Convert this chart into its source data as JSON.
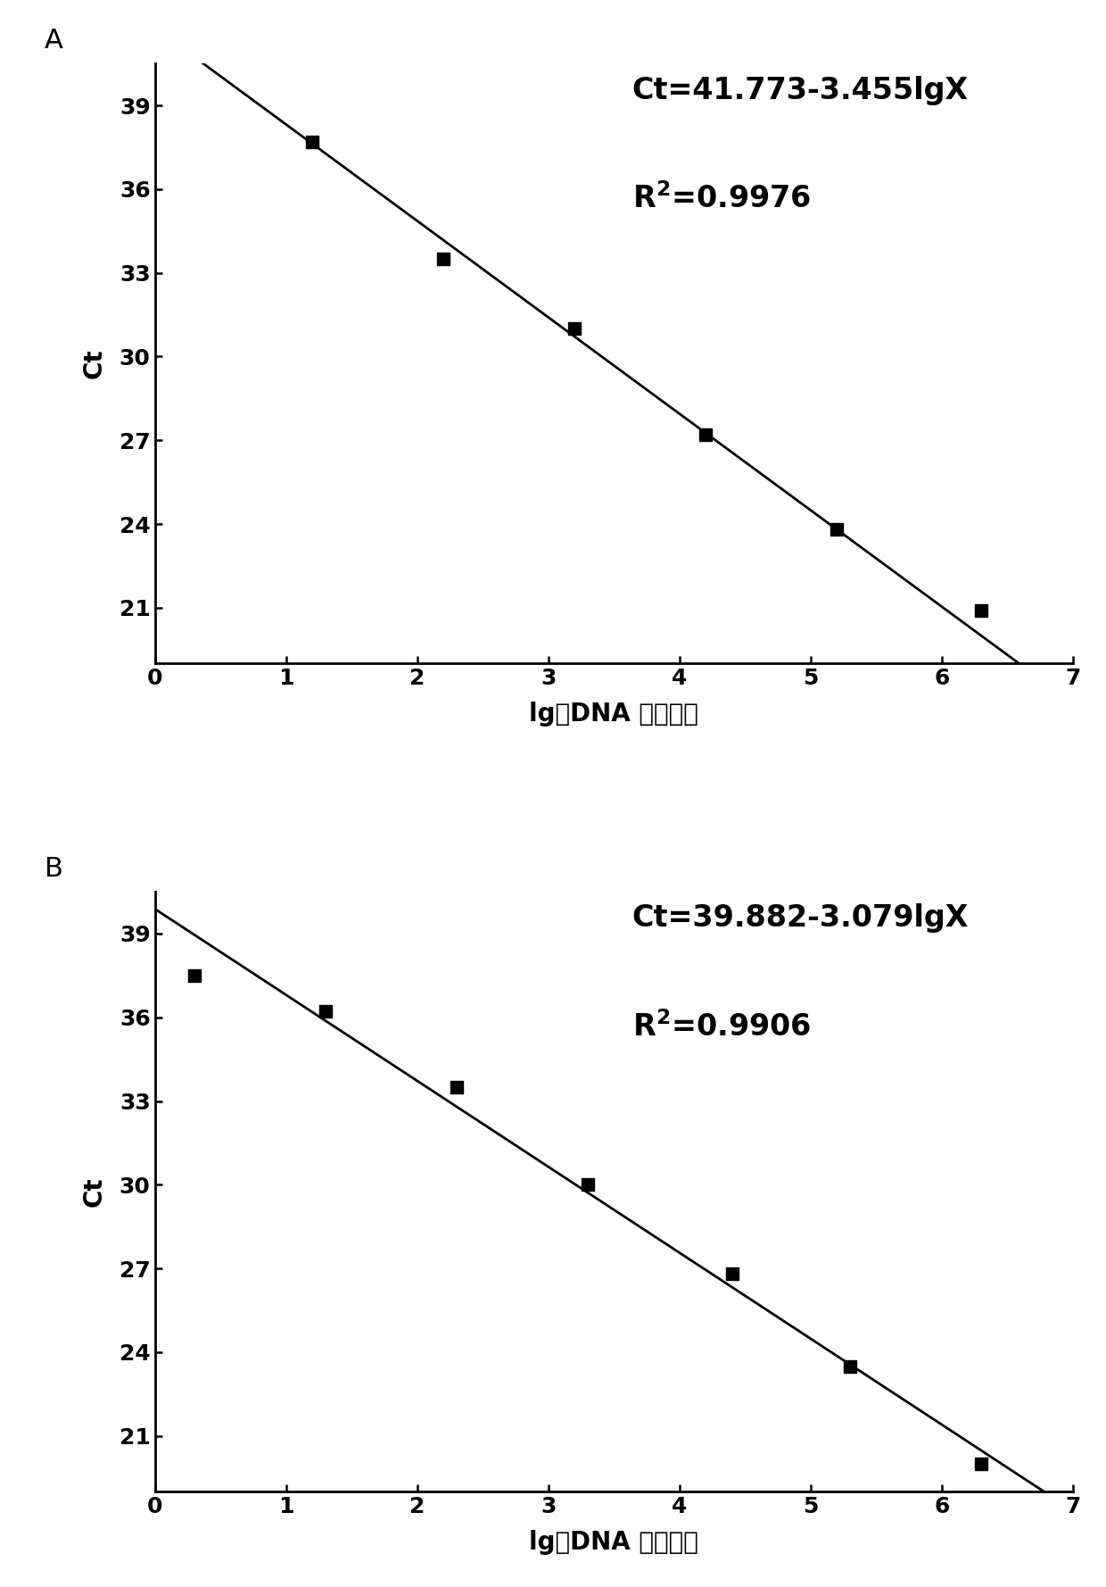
{
  "panel_A": {
    "label": "A",
    "x_data": [
      1.2,
      2.2,
      3.2,
      4.2,
      5.2,
      6.3
    ],
    "y_data": [
      37.7,
      33.5,
      31.0,
      27.2,
      23.8,
      20.9
    ],
    "equation": "Ct=41.773-3.455lgX",
    "r2_eq": "=0.9976",
    "intercept": 41.773,
    "slope": -3.455,
    "xlim": [
      0,
      7
    ],
    "ylim": [
      19,
      40.5
    ],
    "xticks": [
      0,
      1,
      2,
      3,
      4,
      5,
      6,
      7
    ],
    "yticks": [
      21,
      24,
      27,
      30,
      33,
      36,
      39
    ],
    "xlabel": "lg［DNA 拷贝数］",
    "ylabel": "Ct"
  },
  "panel_B": {
    "label": "B",
    "x_data": [
      0.3,
      1.3,
      2.3,
      3.3,
      4.4,
      5.3,
      6.3
    ],
    "y_data": [
      37.5,
      36.2,
      33.5,
      30.0,
      26.8,
      23.5,
      20.0
    ],
    "equation": "Ct=39.882-3.079lgX",
    "r2_eq": "=0.9906",
    "intercept": 39.882,
    "slope": -3.079,
    "xlim": [
      0,
      7
    ],
    "ylim": [
      19,
      40.5
    ],
    "xticks": [
      0,
      1,
      2,
      3,
      4,
      5,
      6,
      7
    ],
    "yticks": [
      21,
      24,
      27,
      30,
      33,
      36,
      39
    ],
    "xlabel": "lg［DNA 拷贝数］",
    "ylabel": "Ct"
  },
  "marker_size": 90,
  "marker_color": "#000000",
  "line_color": "#000000",
  "line_width": 2.0,
  "bg_color": "#ffffff",
  "tick_fontsize": 18,
  "axis_label_fontsize": 20,
  "eq_fontsize": 24,
  "panel_label_fontsize": 22
}
